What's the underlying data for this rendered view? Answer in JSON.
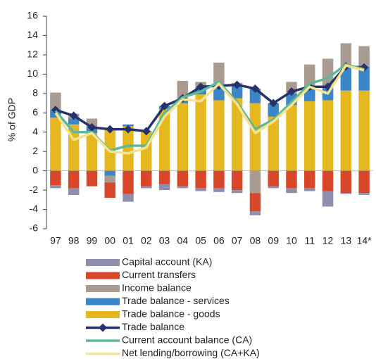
{
  "chart_data": {
    "type": "bar",
    "y_label": "% of GDP",
    "categories": [
      "97",
      "98",
      "99",
      "00",
      "01",
      "02",
      "03",
      "04",
      "05",
      "06",
      "07",
      "08",
      "09",
      "10",
      "11",
      "12",
      "13",
      "14*"
    ],
    "ylim": [
      -6,
      16
    ],
    "yticks": [
      -6,
      -4,
      -2,
      0,
      2,
      4,
      6,
      8,
      10,
      12,
      14,
      16
    ],
    "series": [
      {
        "name": "Capital account (KA)",
        "type": "bar",
        "color": "#8e8fae",
        "values": [
          -0.3,
          -0.7,
          0,
          0,
          -0.8,
          -0.2,
          -0.6,
          -0.2,
          -0.3,
          -0.4,
          -0.3,
          -0.4,
          -0.2,
          -0.5,
          -0.3,
          -1.6,
          -0.1,
          -0.2
        ]
      },
      {
        "name": "Current transfers",
        "type": "bar",
        "color": "#d9472b",
        "values": [
          -1.5,
          -1.8,
          -1.6,
          -1.6,
          -2.4,
          -1.6,
          -1.4,
          -1.6,
          -1.8,
          -1.8,
          -2.0,
          -1.9,
          -1.6,
          -1.8,
          -1.8,
          -2.1,
          -2.3,
          -2.3
        ]
      },
      {
        "name": "Income balance",
        "type": "bar",
        "color": "#a99b91",
        "values": [
          1.8,
          0.5,
          0.8,
          -0.7,
          0,
          0,
          0,
          1.8,
          0.5,
          2.4,
          0.3,
          -2.3,
          0,
          1.2,
          2.3,
          2.8,
          2.4,
          2.1
        ]
      },
      {
        "name": "Trade balance - services",
        "type": "bar",
        "color": "#3a86c8",
        "values": [
          0.8,
          0.6,
          0.7,
          -0.5,
          0.2,
          0.1,
          0.3,
          0.5,
          0.8,
          1.5,
          1.3,
          1.5,
          1.4,
          1.2,
          1.5,
          1.5,
          2.5,
          2.5
        ]
      },
      {
        "name": "Trade balance - goods",
        "type": "bar",
        "color": "#e5b820",
        "values": [
          5.5,
          4.8,
          3.9,
          4.3,
          4.6,
          4.0,
          6.4,
          7.0,
          7.9,
          7.3,
          7.5,
          7.0,
          5.6,
          6.8,
          7.2,
          7.3,
          8.3,
          8.3
        ]
      },
      {
        "name": "Trade balance",
        "type": "line",
        "marker": "diamond",
        "color": "#26326b",
        "values": [
          6.3,
          5.7,
          4.5,
          4.3,
          4.3,
          4.1,
          6.7,
          7.5,
          8.7,
          8.8,
          8.9,
          8.5,
          7.0,
          8.2,
          8.7,
          8.7,
          10.8,
          10.7
        ]
      },
      {
        "name": "Current account balance (CA)",
        "type": "line",
        "color": "#5db89b",
        "values": [
          6.2,
          4.0,
          4.0,
          2.1,
          2.6,
          2.6,
          6.0,
          7.6,
          8.2,
          9.2,
          7.1,
          4.3,
          5.3,
          7.1,
          9.0,
          9.6,
          11.0,
          10.5
        ]
      },
      {
        "name": "Net lending/borrowing (CA+KA)",
        "type": "line",
        "color": "#f8e28c",
        "values": [
          6.0,
          3.2,
          3.9,
          2.0,
          1.8,
          2.4,
          5.6,
          7.4,
          7.2,
          9.0,
          6.9,
          3.9,
          5.1,
          6.8,
          8.7,
          8.0,
          10.9,
          10.4
        ]
      }
    ]
  }
}
